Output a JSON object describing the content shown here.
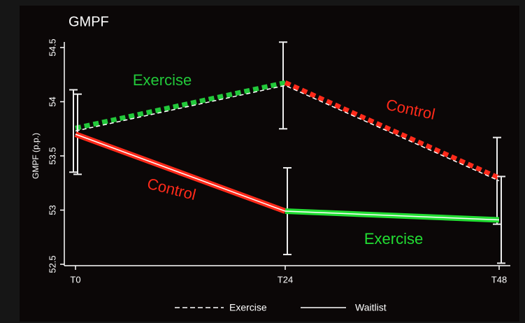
{
  "chart_data": {
    "type": "line",
    "title": "GMPF",
    "ylabel": "GMPF (p.p.)",
    "categories": [
      "T0",
      "T24",
      "T48"
    ],
    "series": [
      {
        "name": "Exercise",
        "color": "#ffffff",
        "dash": true,
        "values": [
          53.73,
          54.15,
          53.27
        ],
        "errors": [
          0.38,
          0.4,
          0.4
        ],
        "segment_colors": [
          "#22c83a",
          "#ff2a1a"
        ]
      },
      {
        "name": "Waitlist",
        "color": "#ffffff",
        "dash": false,
        "values": [
          53.7,
          52.99,
          52.91
        ],
        "errors": [
          0.37,
          0.4,
          0.4
        ],
        "segment_colors": [
          "#ff2a1a",
          "#22dd33"
        ]
      }
    ],
    "annotations": [
      {
        "text": "Exercise",
        "color": "#22c83a"
      },
      {
        "text": "Control",
        "color": "#ff2a1a"
      },
      {
        "text": "Control",
        "color": "#ff2a1a"
      },
      {
        "text": "Exercise",
        "color": "#22dd33"
      }
    ],
    "ylim": [
      52.5,
      54.5
    ],
    "yticks": [
      52.5,
      53,
      53.5,
      54,
      54.5
    ],
    "legend": "bottom"
  }
}
